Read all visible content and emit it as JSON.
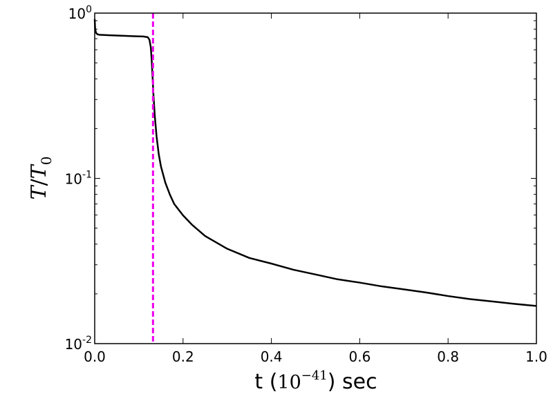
{
  "chart_data": {
    "type": "line",
    "title": "",
    "xlabel": {
      "prefix": "t (",
      "math_base": "10",
      "math_exp": "−41",
      "suffix": ") sec"
    },
    "ylabel": {
      "var": "T",
      "slash": "/",
      "sub_var": "T",
      "sub": "0"
    },
    "xlim": [
      0.0,
      1.0
    ],
    "ylim": [
      0.01,
      1.0
    ],
    "yscale": "log",
    "grid": false,
    "legend": "none",
    "x_ticks": [
      {
        "value": 0.0,
        "label": "0.0"
      },
      {
        "value": 0.2,
        "label": "0.2"
      },
      {
        "value": 0.4,
        "label": "0.4"
      },
      {
        "value": 0.6,
        "label": "0.6"
      },
      {
        "value": 0.8,
        "label": "0.8"
      },
      {
        "value": 1.0,
        "label": "1.0"
      }
    ],
    "y_ticks": [
      {
        "value": 1.0,
        "base": "10",
        "exp": "0"
      },
      {
        "value": 0.1,
        "base": "10",
        "exp": "-1"
      },
      {
        "value": 0.01,
        "base": "10",
        "exp": "-2"
      }
    ],
    "series": [
      {
        "color": "#000000",
        "style": "solid",
        "points": [
          [
            0.0,
            0.92
          ],
          [
            0.001,
            0.8
          ],
          [
            0.003,
            0.76
          ],
          [
            0.006,
            0.745
          ],
          [
            0.01,
            0.74
          ],
          [
            0.03,
            0.735
          ],
          [
            0.06,
            0.73
          ],
          [
            0.09,
            0.725
          ],
          [
            0.11,
            0.722
          ],
          [
            0.12,
            0.715
          ],
          [
            0.124,
            0.69
          ],
          [
            0.127,
            0.62
          ],
          [
            0.129,
            0.52
          ],
          [
            0.131,
            0.41
          ],
          [
            0.133,
            0.32
          ],
          [
            0.136,
            0.24
          ],
          [
            0.14,
            0.18
          ],
          [
            0.145,
            0.14
          ],
          [
            0.15,
            0.118
          ],
          [
            0.16,
            0.094
          ],
          [
            0.17,
            0.08
          ],
          [
            0.18,
            0.07
          ],
          [
            0.2,
            0.0597
          ],
          [
            0.22,
            0.0525
          ],
          [
            0.25,
            0.0448
          ],
          [
            0.3,
            0.0375
          ],
          [
            0.35,
            0.033
          ],
          [
            0.4,
            0.0305
          ],
          [
            0.45,
            0.028
          ],
          [
            0.5,
            0.0262
          ],
          [
            0.55,
            0.0245
          ],
          [
            0.6,
            0.0234
          ],
          [
            0.65,
            0.0222
          ],
          [
            0.7,
            0.0213
          ],
          [
            0.75,
            0.0204
          ],
          [
            0.8,
            0.0194
          ],
          [
            0.85,
            0.0186
          ],
          [
            0.9,
            0.018
          ],
          [
            0.95,
            0.0174
          ],
          [
            1.0,
            0.0169
          ]
        ]
      }
    ],
    "vline": {
      "x": 0.132,
      "color": "#ee00ee",
      "style": "dashed"
    }
  }
}
